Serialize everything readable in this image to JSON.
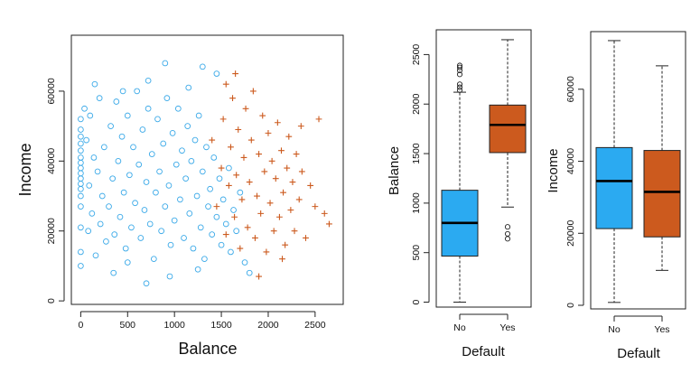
{
  "chart_data": [
    {
      "type": "scatter",
      "xlabel": "Balance",
      "ylabel": "Income",
      "xlim": [
        -100,
        2800
      ],
      "ylim": [
        -1000,
        76000
      ],
      "xticks": [
        0,
        500,
        1000,
        1500,
        2000,
        2500
      ],
      "xtick_labels": [
        "0",
        "500",
        "1000",
        "1500",
        "2000",
        "2500"
      ],
      "yticks": [
        0,
        20000,
        40000,
        60000
      ],
      "ytick_labels": [
        "0",
        "20000",
        "40000",
        "60000"
      ],
      "series": [
        {
          "name": "No",
          "marker": "circle",
          "color": "#3aa9e8",
          "points": [
            [
              0,
              10000
            ],
            [
              0,
              14000
            ],
            [
              0,
              21000
            ],
            [
              0,
              27000
            ],
            [
              0,
              30000
            ],
            [
              0,
              32000
            ],
            [
              0,
              33500
            ],
            [
              0,
              35000
            ],
            [
              0,
              36500
            ],
            [
              0,
              38000
            ],
            [
              0,
              39500
            ],
            [
              0,
              41000
            ],
            [
              0,
              43000
            ],
            [
              0,
              45000
            ],
            [
              0,
              47000
            ],
            [
              0,
              49000
            ],
            [
              0,
              52000
            ],
            [
              40,
              55000
            ],
            [
              60,
              46000
            ],
            [
              80,
              20000
            ],
            [
              90,
              33000
            ],
            [
              100,
              53000
            ],
            [
              120,
              25000
            ],
            [
              140,
              41000
            ],
            [
              160,
              13000
            ],
            [
              180,
              37000
            ],
            [
              200,
              58000
            ],
            [
              210,
              22000
            ],
            [
              230,
              30000
            ],
            [
              250,
              44000
            ],
            [
              270,
              17000
            ],
            [
              300,
              27000
            ],
            [
              320,
              50000
            ],
            [
              340,
              35000
            ],
            [
              360,
              19000
            ],
            [
              380,
              57000
            ],
            [
              400,
              40000
            ],
            [
              420,
              24000
            ],
            [
              440,
              47000
            ],
            [
              460,
              31000
            ],
            [
              480,
              15000
            ],
            [
              500,
              53000
            ],
            [
              520,
              36000
            ],
            [
              540,
              21000
            ],
            [
              560,
              44000
            ],
            [
              580,
              28000
            ],
            [
              600,
              60000
            ],
            [
              620,
              39000
            ],
            [
              640,
              18000
            ],
            [
              660,
              49000
            ],
            [
              680,
              26000
            ],
            [
              700,
              34000
            ],
            [
              720,
              55000
            ],
            [
              740,
              22000
            ],
            [
              760,
              42000
            ],
            [
              780,
              12000
            ],
            [
              800,
              31000
            ],
            [
              820,
              52000
            ],
            [
              840,
              37000
            ],
            [
              860,
              20000
            ],
            [
              880,
              45000
            ],
            [
              900,
              27000
            ],
            [
              920,
              58000
            ],
            [
              940,
              33000
            ],
            [
              960,
              16000
            ],
            [
              980,
              48000
            ],
            [
              1000,
              23000
            ],
            [
              1020,
              39000
            ],
            [
              1040,
              55000
            ],
            [
              1060,
              29000
            ],
            [
              1080,
              43000
            ],
            [
              1100,
              18000
            ],
            [
              1120,
              35000
            ],
            [
              1140,
              50000
            ],
            [
              1160,
              25000
            ],
            [
              1180,
              40000
            ],
            [
              1200,
              15000
            ],
            [
              1220,
              46000
            ],
            [
              1240,
              30000
            ],
            [
              1260,
              53000
            ],
            [
              1280,
              21000
            ],
            [
              1300,
              37000
            ],
            [
              1320,
              12000
            ],
            [
              1340,
              44000
            ],
            [
              1360,
              27000
            ],
            [
              1380,
              32000
            ],
            [
              1400,
              19000
            ],
            [
              1420,
              41000
            ],
            [
              1450,
              24000
            ],
            [
              1480,
              35000
            ],
            [
              1500,
              16000
            ],
            [
              1520,
              29000
            ],
            [
              1550,
              22000
            ],
            [
              1580,
              38000
            ],
            [
              1600,
              14000
            ],
            [
              1630,
              26000
            ],
            [
              1660,
              20000
            ],
            [
              1700,
              31000
            ],
            [
              1750,
              11000
            ],
            [
              1800,
              8000
            ],
            [
              150,
              62000
            ],
            [
              450,
              60000
            ],
            [
              720,
              63000
            ],
            [
              900,
              68000
            ],
            [
              1150,
              61000
            ],
            [
              1300,
              67000
            ],
            [
              1450,
              65000
            ],
            [
              700,
              5000
            ],
            [
              950,
              7000
            ],
            [
              1250,
              9000
            ],
            [
              500,
              11000
            ],
            [
              350,
              8000
            ]
          ]
        },
        {
          "name": "Yes",
          "marker": "plus",
          "color": "#cc5a1e",
          "points": [
            [
              1400,
              46000
            ],
            [
              1450,
              27000
            ],
            [
              1500,
              38000
            ],
            [
              1520,
              52000
            ],
            [
              1550,
              19000
            ],
            [
              1580,
              33000
            ],
            [
              1600,
              44000
            ],
            [
              1620,
              58000
            ],
            [
              1640,
              24000
            ],
            [
              1660,
              36000
            ],
            [
              1680,
              49000
            ],
            [
              1700,
              15000
            ],
            [
              1720,
              29000
            ],
            [
              1740,
              41000
            ],
            [
              1760,
              55000
            ],
            [
              1780,
              21000
            ],
            [
              1800,
              34000
            ],
            [
              1820,
              46000
            ],
            [
              1840,
              60000
            ],
            [
              1860,
              18000
            ],
            [
              1880,
              30000
            ],
            [
              1900,
              42000
            ],
            [
              1920,
              25000
            ],
            [
              1940,
              53000
            ],
            [
              1960,
              37000
            ],
            [
              1980,
              14000
            ],
            [
              2000,
              48000
            ],
            [
              2020,
              28000
            ],
            [
              2040,
              40000
            ],
            [
              2060,
              20000
            ],
            [
              2080,
              35000
            ],
            [
              2100,
              51000
            ],
            [
              2120,
              24000
            ],
            [
              2140,
              43000
            ],
            [
              2160,
              31000
            ],
            [
              2180,
              16000
            ],
            [
              2200,
              38000
            ],
            [
              2220,
              47000
            ],
            [
              2240,
              26000
            ],
            [
              2260,
              34000
            ],
            [
              2280,
              20000
            ],
            [
              2300,
              42000
            ],
            [
              2330,
              29000
            ],
            [
              2360,
              37000
            ],
            [
              2400,
              18000
            ],
            [
              2450,
              33000
            ],
            [
              2500,
              27000
            ],
            [
              2540,
              52000
            ],
            [
              2600,
              25000
            ],
            [
              2650,
              22000
            ],
            [
              1650,
              65000
            ],
            [
              1550,
              62000
            ],
            [
              1900,
              7000
            ],
            [
              2150,
              12000
            ],
            [
              2350,
              50000
            ]
          ]
        }
      ]
    },
    {
      "type": "boxplot",
      "xlabel": "Default",
      "ylabel": "Balance",
      "ylim": [
        -50,
        2750
      ],
      "yticks": [
        0,
        500,
        1000,
        1500,
        2000,
        2500
      ],
      "ytick_labels": [
        "0",
        "500",
        "1000",
        "1500",
        "2000",
        "2500"
      ],
      "categories": [
        "No",
        "Yes"
      ],
      "boxes": [
        {
          "name": "No",
          "color": "#2baaf1",
          "min": 0,
          "q1": 465,
          "median": 800,
          "q3": 1130,
          "max": 2120,
          "outliers": [
            2140,
            2170,
            2200,
            2300,
            2340,
            2370,
            2390
          ]
        },
        {
          "name": "Yes",
          "color": "#cc5a1e",
          "min": 960,
          "q1": 1510,
          "median": 1790,
          "q3": 1990,
          "max": 2650,
          "outliers": [
            760,
            690,
            640
          ]
        }
      ]
    },
    {
      "type": "boxplot",
      "xlabel": "Default",
      "ylabel": "Income",
      "ylim": [
        -1000,
        76000
      ],
      "yticks": [
        0,
        20000,
        40000,
        60000
      ],
      "ytick_labels": [
        "0",
        "20000",
        "40000",
        "60000"
      ],
      "categories": [
        "No",
        "Yes"
      ],
      "boxes": [
        {
          "name": "No",
          "color": "#2baaf1",
          "min": 800,
          "q1": 21300,
          "median": 34500,
          "q3": 43800,
          "max": 73500,
          "outliers": []
        },
        {
          "name": "Yes",
          "color": "#cc5a1e",
          "min": 9700,
          "q1": 19000,
          "median": 31500,
          "q3": 43000,
          "max": 66500,
          "outliers": []
        }
      ]
    }
  ]
}
